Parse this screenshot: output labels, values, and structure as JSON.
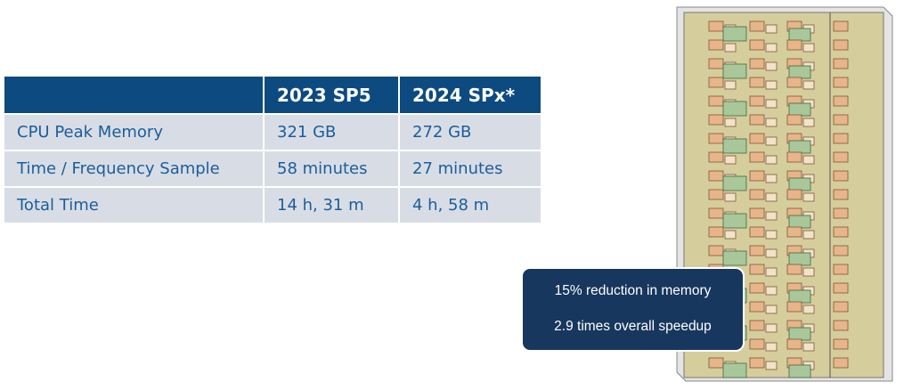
{
  "table": {
    "header": [
      "2023 SP5",
      "2024 SPx*"
    ],
    "rows": [
      [
        "CPU Peak Memory",
        "321 GB",
        "272 GB"
      ],
      [
        "Time / Frequency Sample",
        "58 minutes",
        "27 minutes"
      ],
      [
        "Total Time",
        "14 h, 31 m",
        "4 h, 58 m"
      ]
    ]
  },
  "callout": {
    "lines": [
      "15% reduction in memory",
      "2.9 times overall speedup"
    ]
  }
}
